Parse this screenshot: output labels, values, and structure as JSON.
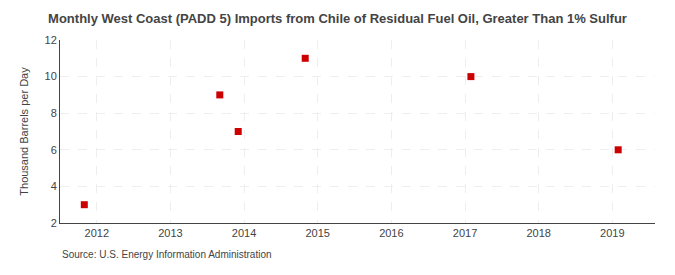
{
  "chart_data": {
    "type": "scatter",
    "title": "Monthly West Coast (PADD 5) Imports from Chile of Residual Fuel Oil, Greater Than 1% Sulfur",
    "ylabel": "Thousand Barrels per Day",
    "source": "Source: U.S. Energy Information Administration",
    "x": [
      2011.83,
      2013.67,
      2013.92,
      2014.83,
      2017.08,
      2019.08
    ],
    "values": [
      3,
      9,
      7,
      11,
      10,
      6
    ],
    "color": "#cc0000",
    "marker": "square",
    "xlim": [
      2011.5,
      2019.58
    ],
    "ylim": [
      2,
      12
    ],
    "xticks": [
      2012,
      2013,
      2014,
      2015,
      2016,
      2017,
      2018,
      2019
    ],
    "yticks": [
      2,
      4,
      6,
      8,
      10,
      12
    ],
    "grid": true
  }
}
